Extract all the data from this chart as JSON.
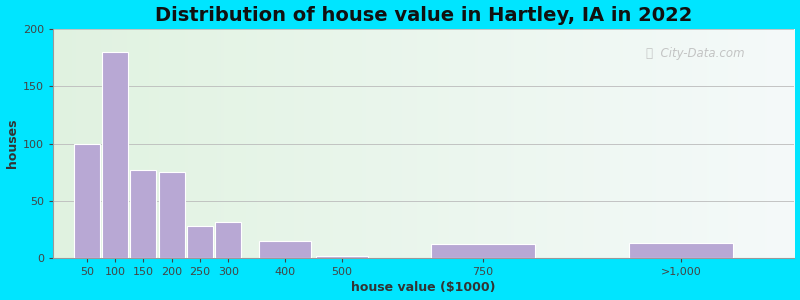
{
  "title": "Distribution of house value in Hartley, IA in 2022",
  "xlabel": "house value ($1000)",
  "ylabel": "houses",
  "bar_labels": [
    "50",
    "100",
    "150",
    "200",
    "250",
    "300",
    "400",
    "500",
    "750",
    ">1,000"
  ],
  "bar_values": [
    100,
    180,
    77,
    75,
    28,
    32,
    15,
    2,
    12,
    13
  ],
  "bar_centers": [
    1,
    2,
    3,
    4,
    5,
    6,
    8,
    10,
    15,
    22
  ],
  "bar_widths_u": [
    1,
    1,
    1,
    1,
    1,
    1,
    2,
    2,
    4,
    4
  ],
  "bar_color": "#b8a8d4",
  "bar_edgecolor": "#ffffff",
  "ylim": [
    0,
    200
  ],
  "yticks": [
    0,
    50,
    100,
    150,
    200
  ],
  "outer_bg": "#00e5ff",
  "grid_color": "#bbbbbb",
  "watermark_text": "City-Data.com",
  "title_fontsize": 14,
  "axis_label_fontsize": 9,
  "tick_fontsize": 8
}
